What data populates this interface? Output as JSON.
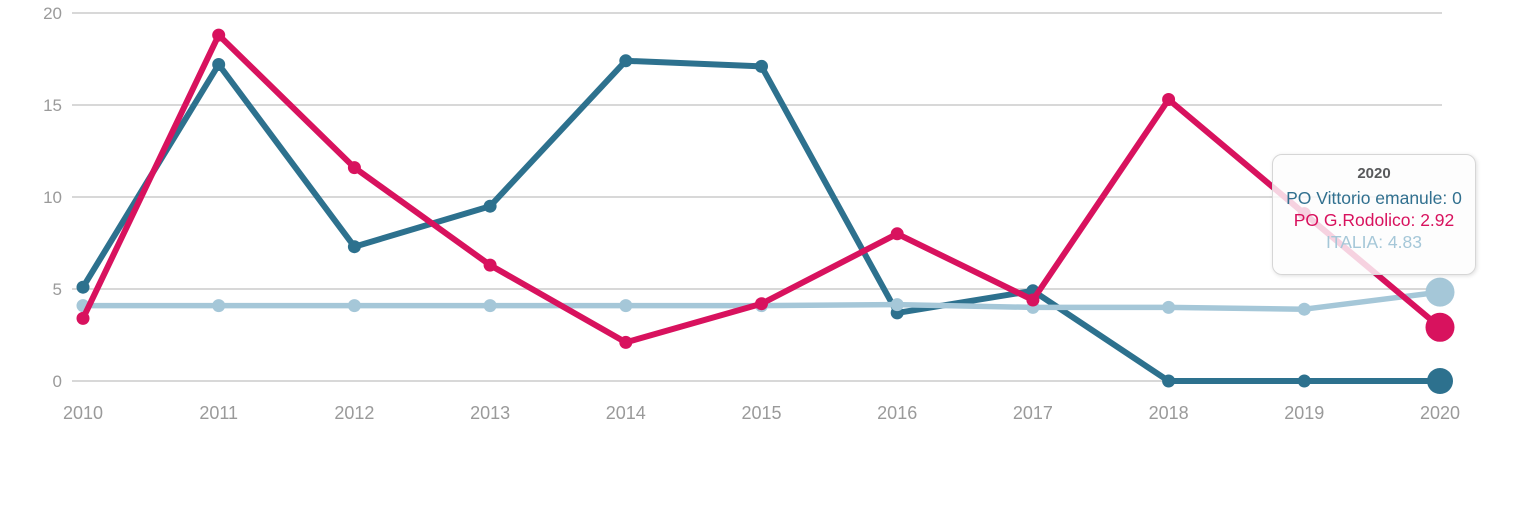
{
  "chart_data": {
    "type": "line",
    "title": "",
    "xlabel": "",
    "ylabel": "",
    "x": [
      2010,
      2011,
      2012,
      2013,
      2014,
      2015,
      2016,
      2017,
      2018,
      2019,
      2020
    ],
    "series": [
      {
        "name": "PO Vittorio emanule",
        "color": "#2d718e",
        "values": [
          5.1,
          17.2,
          7.3,
          9.5,
          17.4,
          17.1,
          3.7,
          4.9,
          0,
          0,
          0
        ]
      },
      {
        "name": "PO G.Rodolico",
        "color": "#d8125e",
        "values": [
          3.4,
          18.8,
          11.6,
          6.3,
          2.1,
          4.2,
          8,
          4.4,
          15.3,
          9.1,
          2.92
        ]
      },
      {
        "name": "ITALIA",
        "color": "#a5c7d8",
        "values": [
          4.1,
          4.1,
          4.1,
          4.1,
          4.1,
          4.1,
          4.15,
          4,
          4,
          3.9,
          4.83
        ]
      }
    ],
    "ylim": [
      0,
      20
    ],
    "yticks": [
      0,
      5,
      10,
      15,
      20
    ],
    "grid": true,
    "legend": "none",
    "hovered_x": 2020
  },
  "tooltip": {
    "title": "2020",
    "rows": [
      {
        "text": "PO Vittorio emanule: 0",
        "color": "#31708f"
      },
      {
        "text": "PO G.Rodolico: 2.92",
        "color": "#d8125e"
      },
      {
        "text": "ITALIA: 4.83",
        "color": "#a5c7d8"
      }
    ]
  },
  "colors": {
    "grid": "#d8d8d8",
    "axis_label": "#9a9a9a",
    "tooltip_title": "#58595b",
    "background": "#ffffff"
  }
}
